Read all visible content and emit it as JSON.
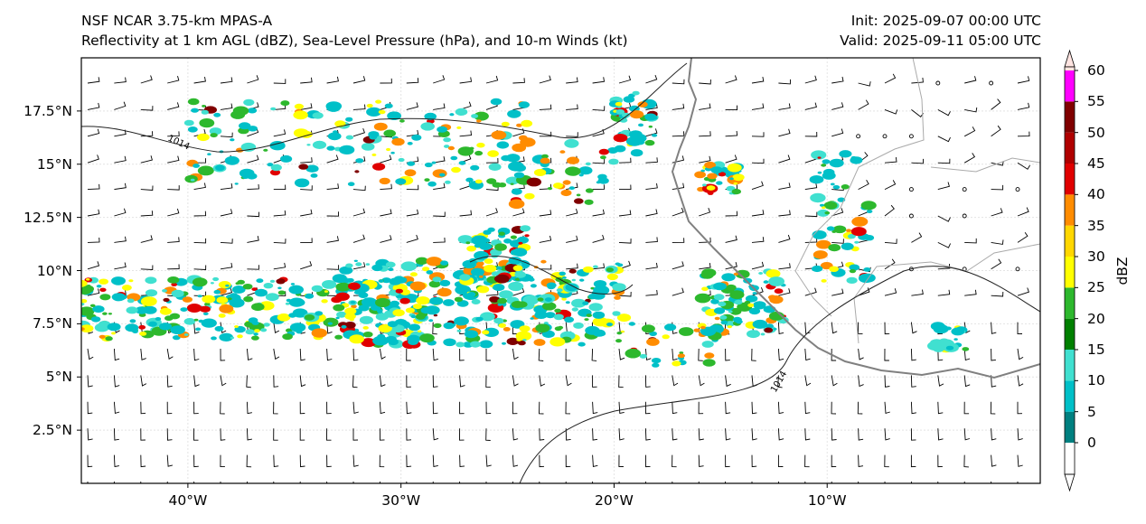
{
  "title": {
    "left_line1": "NSF NCAR 3.75-km MPAS-A",
    "left_line2": "Reflectivity at 1 km AGL (dBZ), Sea-Level Pressure (hPa), and 10-m Winds (kt)",
    "right_line1": "Init: 2025-09-07 00:00 UTC",
    "right_line2": "Valid: 2025-09-11 05:00 UTC"
  },
  "map": {
    "lon_range": [
      -45,
      0
    ],
    "lat_range": [
      0,
      20
    ],
    "lat_ticks": [
      "17.5°N",
      "15°N",
      "12.5°N",
      "10°N",
      "7.5°N",
      "5°N",
      "2.5°N"
    ],
    "lat_values": [
      17.5,
      15,
      12.5,
      10,
      7.5,
      5,
      2.5
    ],
    "lon_ticks": [
      "40°W",
      "30°W",
      "20°W",
      "10°W"
    ],
    "lon_values": [
      -40,
      -30,
      -20,
      -10
    ],
    "isobar_label": "1014"
  },
  "colorbar": {
    "title": "dBZ",
    "ticks": [
      "0",
      "5",
      "10",
      "15",
      "20",
      "25",
      "30",
      "35",
      "40",
      "45",
      "50",
      "55",
      "60"
    ],
    "colors": [
      "#008080",
      "#00c0c8",
      "#40e0d0",
      "#008000",
      "#2db82d",
      "#ffff00",
      "#ffd700",
      "#ff8c00",
      "#e00000",
      "#b00000",
      "#800000",
      "#ff00ff",
      "#ffe4e1"
    ]
  }
}
